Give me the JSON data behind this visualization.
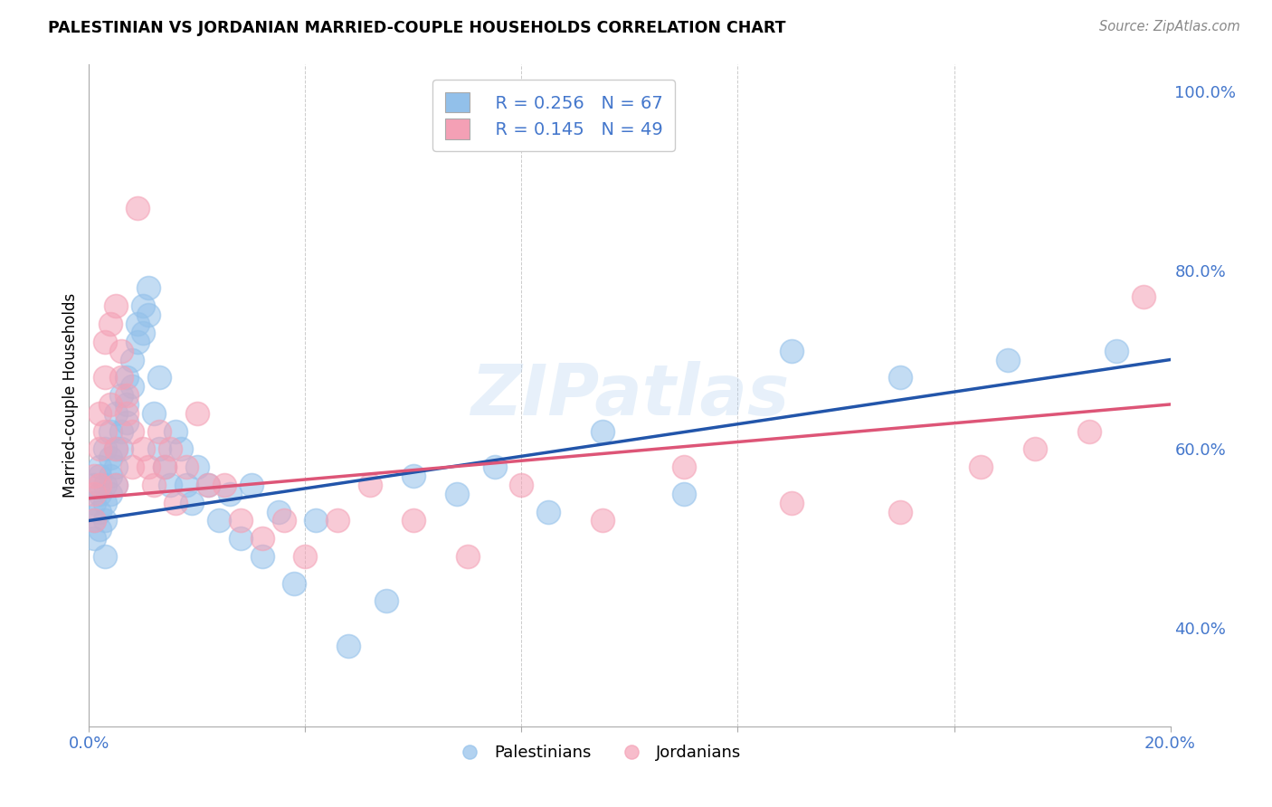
{
  "title": "PALESTINIAN VS JORDANIAN MARRIED-COUPLE HOUSEHOLDS CORRELATION CHART",
  "source": "Source: ZipAtlas.com",
  "ylabel": "Married-couple Households",
  "xlim": [
    0.0,
    0.2
  ],
  "ylim": [
    0.29,
    1.03
  ],
  "yticks": [
    0.4,
    0.6,
    0.8,
    1.0
  ],
  "yticklabels": [
    "40.0%",
    "60.0%",
    "80.0%",
    "100.0%"
  ],
  "palestinians_color": "#92C0EA",
  "jordanians_color": "#F4A0B5",
  "palestinians_line_color": "#2255AA",
  "jordanians_line_color": "#DD5577",
  "background_color": "#FFFFFF",
  "grid_color": "#CCCCCC",
  "watermark": "ZIPatlas",
  "legend_r_pal": "R = 0.256",
  "legend_n_pal": "N = 67",
  "legend_r_jor": "R = 0.145",
  "legend_n_jor": "N = 49",
  "palestinians_x": [
    0.001,
    0.001,
    0.001,
    0.001,
    0.002,
    0.002,
    0.002,
    0.002,
    0.002,
    0.003,
    0.003,
    0.003,
    0.003,
    0.003,
    0.004,
    0.004,
    0.004,
    0.004,
    0.005,
    0.005,
    0.005,
    0.005,
    0.006,
    0.006,
    0.006,
    0.007,
    0.007,
    0.007,
    0.008,
    0.008,
    0.009,
    0.009,
    0.01,
    0.01,
    0.011,
    0.011,
    0.012,
    0.013,
    0.013,
    0.014,
    0.015,
    0.016,
    0.017,
    0.018,
    0.019,
    0.02,
    0.022,
    0.024,
    0.026,
    0.028,
    0.03,
    0.032,
    0.035,
    0.038,
    0.042,
    0.048,
    0.055,
    0.06,
    0.068,
    0.075,
    0.085,
    0.095,
    0.11,
    0.13,
    0.15,
    0.17,
    0.19
  ],
  "palestinians_y": [
    0.54,
    0.52,
    0.5,
    0.56,
    0.57,
    0.55,
    0.58,
    0.53,
    0.51,
    0.6,
    0.56,
    0.54,
    0.52,
    0.48,
    0.62,
    0.59,
    0.57,
    0.55,
    0.64,
    0.6,
    0.58,
    0.56,
    0.66,
    0.62,
    0.6,
    0.68,
    0.65,
    0.63,
    0.7,
    0.67,
    0.74,
    0.72,
    0.76,
    0.73,
    0.78,
    0.75,
    0.64,
    0.68,
    0.6,
    0.58,
    0.56,
    0.62,
    0.6,
    0.56,
    0.54,
    0.58,
    0.56,
    0.52,
    0.55,
    0.5,
    0.56,
    0.48,
    0.53,
    0.45,
    0.52,
    0.38,
    0.43,
    0.57,
    0.55,
    0.58,
    0.53,
    0.62,
    0.55,
    0.71,
    0.68,
    0.7,
    0.71
  ],
  "jordanians_x": [
    0.001,
    0.001,
    0.001,
    0.002,
    0.002,
    0.002,
    0.003,
    0.003,
    0.003,
    0.004,
    0.004,
    0.005,
    0.005,
    0.005,
    0.006,
    0.006,
    0.007,
    0.007,
    0.008,
    0.008,
    0.009,
    0.01,
    0.011,
    0.012,
    0.013,
    0.014,
    0.015,
    0.016,
    0.018,
    0.02,
    0.022,
    0.025,
    0.028,
    0.032,
    0.036,
    0.04,
    0.046,
    0.052,
    0.06,
    0.07,
    0.08,
    0.095,
    0.11,
    0.13,
    0.15,
    0.165,
    0.175,
    0.185,
    0.195
  ],
  "jordanians_y": [
    0.55,
    0.52,
    0.57,
    0.6,
    0.64,
    0.56,
    0.68,
    0.72,
    0.62,
    0.74,
    0.65,
    0.76,
    0.6,
    0.56,
    0.71,
    0.68,
    0.66,
    0.64,
    0.62,
    0.58,
    0.87,
    0.6,
    0.58,
    0.56,
    0.62,
    0.58,
    0.6,
    0.54,
    0.58,
    0.64,
    0.56,
    0.56,
    0.52,
    0.5,
    0.52,
    0.48,
    0.52,
    0.56,
    0.52,
    0.48,
    0.56,
    0.52,
    0.58,
    0.54,
    0.53,
    0.58,
    0.6,
    0.62,
    0.77
  ]
}
